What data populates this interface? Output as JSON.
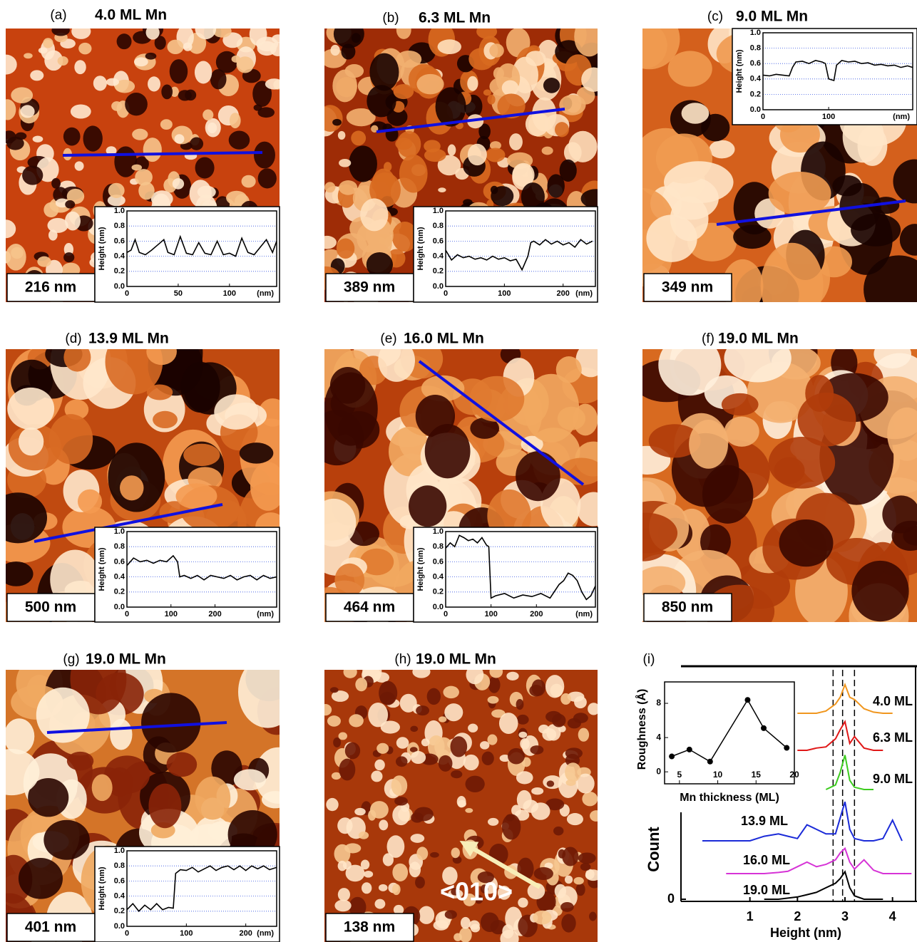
{
  "panels": [
    {
      "label": "(a)",
      "title": "4.0 ML Mn",
      "scale": "216 nm"
    },
    {
      "label": "(b)",
      "title": "6.3 ML Mn",
      "scale": "389 nm"
    },
    {
      "label": "(c)",
      "title": "9.0 ML Mn",
      "scale": "349 nm"
    },
    {
      "label": "(d)",
      "title": "13.9 ML Mn",
      "scale": "500 nm"
    },
    {
      "label": "(e)",
      "title": "16.0 ML Mn",
      "scale": "464 nm"
    },
    {
      "label": "(f)",
      "title": "19.0 ML Mn",
      "scale": "850 nm"
    },
    {
      "label": "(g)",
      "title": "19.0 ML Mn",
      "scale": "401 nm"
    },
    {
      "label": "(h)",
      "title": "19.0 ML Mn",
      "scale": "138 nm"
    },
    {
      "label": "(i)"
    }
  ],
  "arrow_label": "<010>",
  "chart_data": [
    {
      "type": "line",
      "ylabel": "Height (nm)",
      "xlabel": "(nm)",
      "color": "#000000",
      "grid": true,
      "xlim": [
        0,
        146
      ],
      "xticks": [
        0,
        50,
        100
      ],
      "ylim": [
        0,
        1
      ],
      "yticks": [
        {
          "value": 0,
          "label": "0.0"
        },
        0.2,
        0.4,
        0.6,
        0.8,
        {
          "value": 1,
          "label": "1.0"
        }
      ],
      "x": [
        0,
        4,
        8,
        12,
        18,
        24,
        30,
        36,
        40,
        46,
        52,
        58,
        64,
        70,
        76,
        82,
        88,
        94,
        100,
        106,
        112,
        118,
        124,
        130,
        136,
        142,
        146
      ],
      "values": [
        0.45,
        0.48,
        0.62,
        0.45,
        0.42,
        0.48,
        0.55,
        0.62,
        0.45,
        0.42,
        0.66,
        0.44,
        0.42,
        0.58,
        0.44,
        0.42,
        0.6,
        0.42,
        0.44,
        0.4,
        0.64,
        0.45,
        0.42,
        0.52,
        0.62,
        0.45,
        0.6
      ]
    },
    {
      "type": "line",
      "ylabel": "Height (nm)",
      "xlabel": "(nm)",
      "color": "#000000",
      "grid": true,
      "xlim": [
        0,
        255
      ],
      "xticks": [
        0,
        100,
        200
      ],
      "ylim": [
        0,
        1
      ],
      "yticks": [
        {
          "value": 0,
          "label": "0.0"
        },
        0.2,
        0.4,
        0.6,
        0.8,
        {
          "value": 1,
          "label": "1.0"
        }
      ],
      "x": [
        0,
        10,
        20,
        30,
        40,
        50,
        60,
        70,
        80,
        90,
        100,
        110,
        120,
        130,
        140,
        145,
        150,
        160,
        170,
        180,
        190,
        200,
        210,
        220,
        230,
        240,
        250
      ],
      "values": [
        0.48,
        0.35,
        0.42,
        0.38,
        0.4,
        0.36,
        0.38,
        0.35,
        0.4,
        0.36,
        0.38,
        0.34,
        0.36,
        0.22,
        0.4,
        0.58,
        0.6,
        0.55,
        0.62,
        0.56,
        0.6,
        0.55,
        0.58,
        0.52,
        0.62,
        0.56,
        0.6
      ]
    },
    {
      "type": "line",
      "ylabel": "Height (nm)",
      "xlabel": "(nm)",
      "color": "#000000",
      "grid": true,
      "xlim": [
        0,
        228
      ],
      "xticks": [
        0,
        100
      ],
      "ylim": [
        0,
        1
      ],
      "yticks": [
        {
          "value": 0,
          "label": "0.0"
        },
        0.2,
        0.4,
        0.6,
        0.8,
        {
          "value": 1,
          "label": "1.0"
        }
      ],
      "x": [
        0,
        10,
        20,
        30,
        40,
        45,
        50,
        60,
        70,
        80,
        90,
        95,
        100,
        108,
        112,
        120,
        130,
        140,
        150,
        160,
        170,
        180,
        190,
        200,
        210,
        220,
        228
      ],
      "values": [
        0.45,
        0.44,
        0.46,
        0.45,
        0.44,
        0.55,
        0.62,
        0.63,
        0.6,
        0.64,
        0.62,
        0.6,
        0.4,
        0.38,
        0.58,
        0.64,
        0.62,
        0.63,
        0.6,
        0.61,
        0.58,
        0.59,
        0.57,
        0.58,
        0.55,
        0.57,
        0.55
      ]
    },
    {
      "type": "line",
      "ylabel": "Height (nm)",
      "xlabel": "(nm)",
      "color": "#000000",
      "grid": true,
      "xlim": [
        0,
        340
      ],
      "xticks": [
        0,
        100,
        200
      ],
      "ylim": [
        0,
        1
      ],
      "yticks": [
        {
          "value": 0,
          "label": "0.0"
        },
        0.2,
        0.4,
        0.6,
        0.8,
        {
          "value": 1,
          "label": "1.0"
        }
      ],
      "x": [
        0,
        15,
        30,
        45,
        60,
        75,
        90,
        105,
        115,
        120,
        130,
        145,
        160,
        175,
        190,
        205,
        220,
        235,
        250,
        265,
        280,
        295,
        310,
        325,
        340
      ],
      "values": [
        0.55,
        0.65,
        0.6,
        0.62,
        0.58,
        0.62,
        0.6,
        0.68,
        0.6,
        0.4,
        0.42,
        0.38,
        0.42,
        0.36,
        0.42,
        0.4,
        0.38,
        0.42,
        0.36,
        0.4,
        0.42,
        0.36,
        0.42,
        0.38,
        0.4
      ]
    },
    {
      "type": "line",
      "ylabel": "Height (nm)",
      "xlabel": "(nm)",
      "color": "#000000",
      "grid": true,
      "xlim": [
        0,
        330
      ],
      "xticks": [
        0,
        100,
        200
      ],
      "ylim": [
        0,
        1
      ],
      "yticks": [
        {
          "value": 0,
          "label": "0.0"
        },
        0.2,
        0.4,
        0.6,
        0.8,
        {
          "value": 1,
          "label": "1.0"
        }
      ],
      "x": [
        0,
        10,
        20,
        30,
        40,
        50,
        60,
        70,
        80,
        90,
        95,
        100,
        110,
        130,
        150,
        170,
        190,
        210,
        230,
        250,
        260,
        270,
        280,
        290,
        300,
        310,
        320,
        330
      ],
      "values": [
        0.78,
        0.85,
        0.8,
        0.95,
        0.92,
        0.88,
        0.9,
        0.85,
        0.92,
        0.82,
        0.8,
        0.12,
        0.15,
        0.18,
        0.12,
        0.16,
        0.14,
        0.18,
        0.12,
        0.3,
        0.35,
        0.45,
        0.42,
        0.35,
        0.2,
        0.1,
        0.15,
        0.28
      ]
    },
    {
      "type": "line",
      "ylabel": "Height (nm)",
      "xlabel": "(nm)",
      "color": "#000000",
      "grid": true,
      "xlim": [
        0,
        252
      ],
      "xticks": [
        0,
        100,
        200
      ],
      "ylim": [
        0,
        1
      ],
      "yticks": [
        {
          "value": 0,
          "label": "0.0"
        },
        0.2,
        0.4,
        0.6,
        0.8,
        {
          "value": 1,
          "label": "1.0"
        }
      ],
      "x": [
        0,
        10,
        20,
        30,
        40,
        50,
        60,
        70,
        78,
        82,
        90,
        100,
        110,
        120,
        130,
        140,
        150,
        160,
        170,
        180,
        190,
        200,
        210,
        220,
        230,
        240,
        252
      ],
      "values": [
        0.22,
        0.3,
        0.2,
        0.28,
        0.22,
        0.3,
        0.22,
        0.25,
        0.24,
        0.7,
        0.75,
        0.74,
        0.78,
        0.72,
        0.76,
        0.8,
        0.74,
        0.78,
        0.8,
        0.75,
        0.8,
        0.74,
        0.8,
        0.76,
        0.8,
        0.75,
        0.78
      ]
    },
    {
      "type": "scatter-line",
      "ylabel": "Roughness (Å)",
      "xlabel": "Mn thickness (ML)",
      "color": "#000000",
      "xlim": [
        3.06,
        20
      ],
      "xticks": [
        5,
        10,
        15,
        20
      ],
      "ylim": [
        -1.4,
        10.5
      ],
      "yticks": [
        0,
        4,
        8
      ],
      "x": [
        4,
        6.3,
        9,
        13.9,
        16,
        19
      ],
      "values": [
        1.8,
        2.6,
        1.2,
        8.4,
        5.1,
        2.8
      ]
    },
    {
      "type": "histogram-stack",
      "ylabel": "Count",
      "xlabel": "Height (nm)",
      "xlim": [
        0,
        4.5
      ],
      "xticks": [
        1,
        2,
        3,
        4
      ],
      "ylim": [
        0,
        200
      ],
      "yticks": [
        0
      ],
      "reference_lines": [
        2.75,
        2.95,
        3.2
      ],
      "x": [
        0,
        0.5,
        1,
        1.3,
        1.6,
        1.8,
        2,
        2.2,
        2.4,
        2.6,
        2.8,
        2.9,
        3,
        3.1,
        3.2,
        3.4,
        3.6,
        3.8,
        4,
        4.2,
        4.4
      ],
      "series": [
        {
          "name": "4.0 ML",
          "color": "#f0961e",
          "values": [
            null,
            null,
            null,
            null,
            null,
            null,
            0,
            0,
            0,
            2,
            8,
            14,
            25,
            14,
            12,
            4,
            1,
            0,
            0,
            null,
            null
          ]
        },
        {
          "name": "6.3 ML",
          "color": "#e01818",
          "values": [
            null,
            null,
            null,
            null,
            null,
            null,
            0,
            0,
            2,
            3,
            10,
            18,
            25,
            6,
            12,
            2,
            0,
            0,
            null,
            null,
            null
          ]
        },
        {
          "name": "9.0 ML",
          "color": "#3ccc1e",
          "values": [
            null,
            null,
            null,
            null,
            null,
            null,
            null,
            null,
            null,
            0,
            4,
            15,
            30,
            8,
            2,
            0,
            0,
            null,
            null,
            null,
            null
          ]
        },
        {
          "name": "13.9 ML",
          "color": "#1a2ad8",
          "values": [
            0,
            0,
            0,
            4,
            6,
            4,
            2,
            14,
            10,
            6,
            6,
            20,
            34,
            10,
            2,
            0,
            0,
            2,
            18,
            0,
            null
          ]
        },
        {
          "name": "16.0 ML",
          "color": "#d633d6",
          "values": [
            null,
            0,
            0,
            0,
            1,
            2,
            6,
            10,
            6,
            8,
            12,
            18,
            22,
            10,
            4,
            12,
            3,
            0,
            0,
            0,
            0
          ]
        },
        {
          "name": "19.0 ML",
          "color": "#000000",
          "values": [
            null,
            null,
            null,
            0,
            0,
            1,
            2,
            4,
            6,
            10,
            14,
            18,
            24,
            10,
            3,
            0,
            0,
            0,
            null,
            null,
            null
          ]
        }
      ]
    }
  ]
}
